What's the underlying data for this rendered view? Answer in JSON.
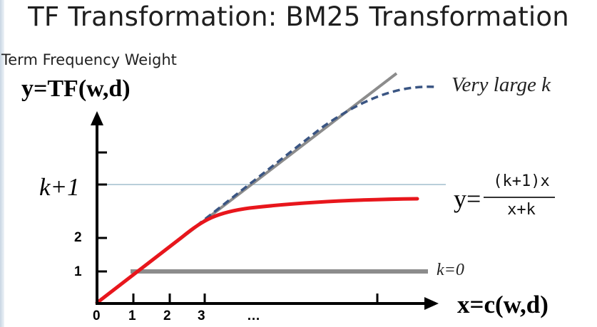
{
  "title": "TF Transformation: BM25 Transformation",
  "y_axis_caption": "Term Frequency Weight",
  "y_axis_label": "y=TF(w,d)",
  "x_axis_label": "x=c(w,d)",
  "annotations": {
    "k_plus_1": "k+1",
    "very_large_k": "Very large k",
    "k_zero": "k=0"
  },
  "formula": {
    "lhs": "y=",
    "numerator": "(k+1)x",
    "denominator": "x+k"
  },
  "x_ticks": [
    "0",
    "1",
    "2",
    "3",
    "…"
  ],
  "y_ticks": [
    "1",
    "2"
  ],
  "colors": {
    "bm25_curve": "#e8161c",
    "large_k_curve": "#3a5583",
    "identity_line": "#8c8c8c",
    "k_zero_line": "#8c8c8c",
    "k_plus_1_line": "#8fb0c4",
    "axes": "#000000"
  }
}
